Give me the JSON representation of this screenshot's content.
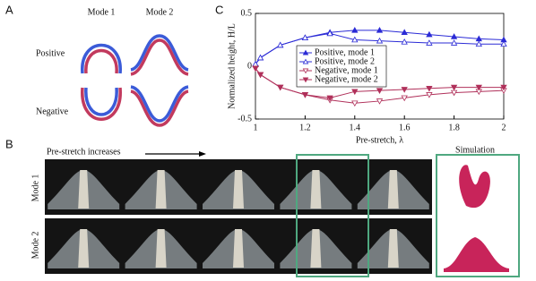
{
  "panel_labels": {
    "a": "A",
    "b": "B",
    "c": "C"
  },
  "panel_a": {
    "columns": [
      "Mode 1",
      "Mode 2"
    ],
    "rows": [
      "Positive",
      "Negative"
    ]
  },
  "panel_b": {
    "arrow_text": "Pre-stretch increases",
    "rows": [
      "Mode 1",
      "Mode 2"
    ],
    "simulation": "Simulation"
  },
  "chart_data": {
    "type": "line",
    "xlabel": "Pre-stretch, λ",
    "ylabel": "Normalized height, H/L",
    "x": [
      1,
      1.02,
      1.1,
      1.2,
      1.3,
      1.4,
      1.5,
      1.6,
      1.7,
      1.8,
      1.9,
      2
    ],
    "series": [
      {
        "name": "Positive,  mode 1",
        "color": "#2b2bd6",
        "marker": "triangle-up",
        "filled": true,
        "values": [
          0.02,
          0.08,
          0.2,
          0.27,
          0.32,
          0.34,
          0.34,
          0.32,
          0.3,
          0.28,
          0.26,
          0.25
        ]
      },
      {
        "name": "Positive,  mode 2",
        "color": "#2b2bd6",
        "marker": "triangle-up",
        "filled": false,
        "values": [
          0.02,
          0.08,
          0.2,
          0.27,
          0.31,
          0.25,
          0.24,
          0.23,
          0.22,
          0.22,
          0.21,
          0.21
        ]
      },
      {
        "name": "Negative, mode 1",
        "color": "#b0305a",
        "marker": "triangle-down",
        "filled": false,
        "values": [
          -0.02,
          -0.08,
          -0.2,
          -0.27,
          -0.32,
          -0.35,
          -0.33,
          -0.3,
          -0.27,
          -0.25,
          -0.24,
          -0.23
        ]
      },
      {
        "name": "Negative, mode 2",
        "color": "#b0305a",
        "marker": "triangle-down",
        "filled": true,
        "values": [
          -0.02,
          -0.08,
          -0.2,
          -0.27,
          -0.3,
          -0.24,
          -0.23,
          -0.22,
          -0.21,
          -0.2,
          -0.2,
          -0.2
        ]
      }
    ],
    "xlim": [
      1,
      2
    ],
    "xticks": [
      1,
      1.2,
      1.4,
      1.6,
      1.8,
      2
    ],
    "ylim": [
      -0.5,
      0.5
    ],
    "yticks": [
      -0.5,
      0,
      0.5
    ],
    "legend_loc": "center left"
  }
}
